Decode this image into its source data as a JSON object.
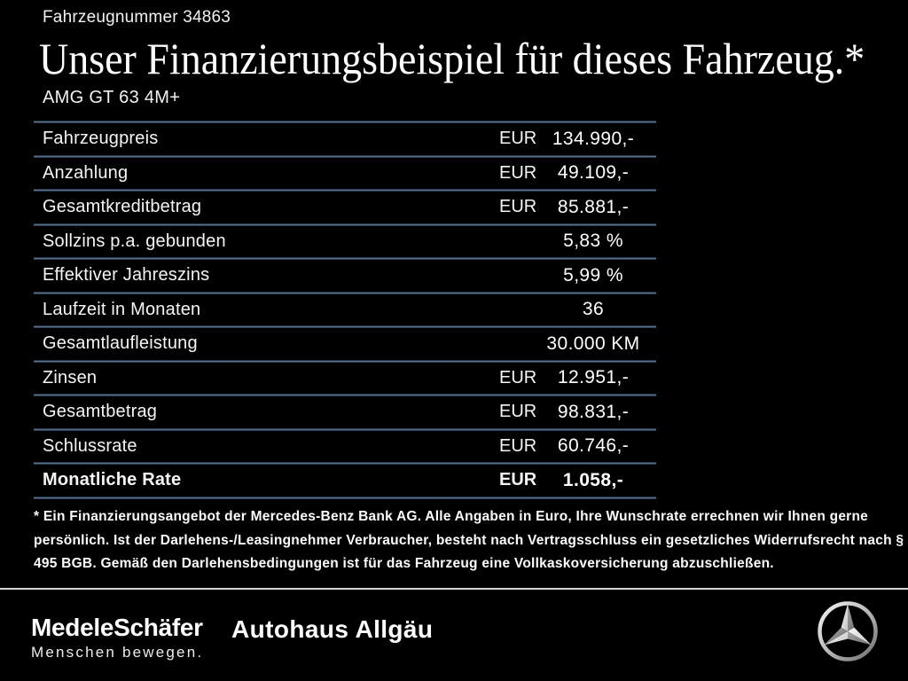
{
  "page": {
    "vehicle_number": "Fahrzeugnummer 34863",
    "title": "Unser Finanzierungsbeispiel für dieses Fahrzeug.*",
    "model": "AMG GT 63 4M+"
  },
  "table": {
    "rows": [
      {
        "label": "Fahrzeugpreis",
        "currency": "EUR",
        "value": "134.990,-",
        "bold": false
      },
      {
        "label": "Anzahlung",
        "currency": "EUR",
        "value": "49.109,-",
        "bold": false
      },
      {
        "label": "Gesamtkreditbetrag",
        "currency": "EUR",
        "value": "85.881,-",
        "bold": false
      },
      {
        "label": "Sollzins p.a. gebunden",
        "currency": "",
        "value": "5,83 %",
        "bold": false
      },
      {
        "label": "Effektiver Jahreszins",
        "currency": "",
        "value": "5,99 %",
        "bold": false
      },
      {
        "label": "Laufzeit in Monaten",
        "currency": "",
        "value": "36",
        "bold": false
      },
      {
        "label": "Gesamtlaufleistung",
        "currency": "",
        "value": "30.000 KM",
        "bold": false
      },
      {
        "label": "Zinsen",
        "currency": "EUR",
        "value": "12.951,-",
        "bold": false
      },
      {
        "label": "Gesamtbetrag",
        "currency": "EUR",
        "value": "98.831,-",
        "bold": false
      },
      {
        "label": "Schlussrate",
        "currency": "EUR",
        "value": "60.746,-",
        "bold": false
      },
      {
        "label": "Monatliche Rate",
        "currency": "EUR",
        "value": "1.058,-",
        "bold": true
      }
    ]
  },
  "footnote": "* Ein Finanzierungsangebot der Mercedes-Benz Bank AG. Alle Angaben in Euro, Ihre Wunschrate errechnen wir Ihnen gerne persönlich. Ist der Darlehens-/Leasingnehmer Verbraucher, besteht nach Vertragsschluss ein gesetzliches Widerrufsrecht nach § 495 BGB. Gemäß den Darlehensbedingungen ist für das Fahrzeug eine Vollkaskoversicherung abzuschließen.",
  "footer": {
    "dealer1": "MedeleSchäfer",
    "dealer1_tagline": "Menschen bewegen.",
    "dealer2": "Autohaus Allgäu",
    "brand_icon": "mercedes-star-icon"
  },
  "colors": {
    "background": "#000000",
    "text": "#ffffff",
    "table_rule": "#5a7390",
    "footer_separator": "#d4d4d4",
    "star_silver_light": "#f2f2f2",
    "star_silver_dark": "#8f8f8f"
  }
}
